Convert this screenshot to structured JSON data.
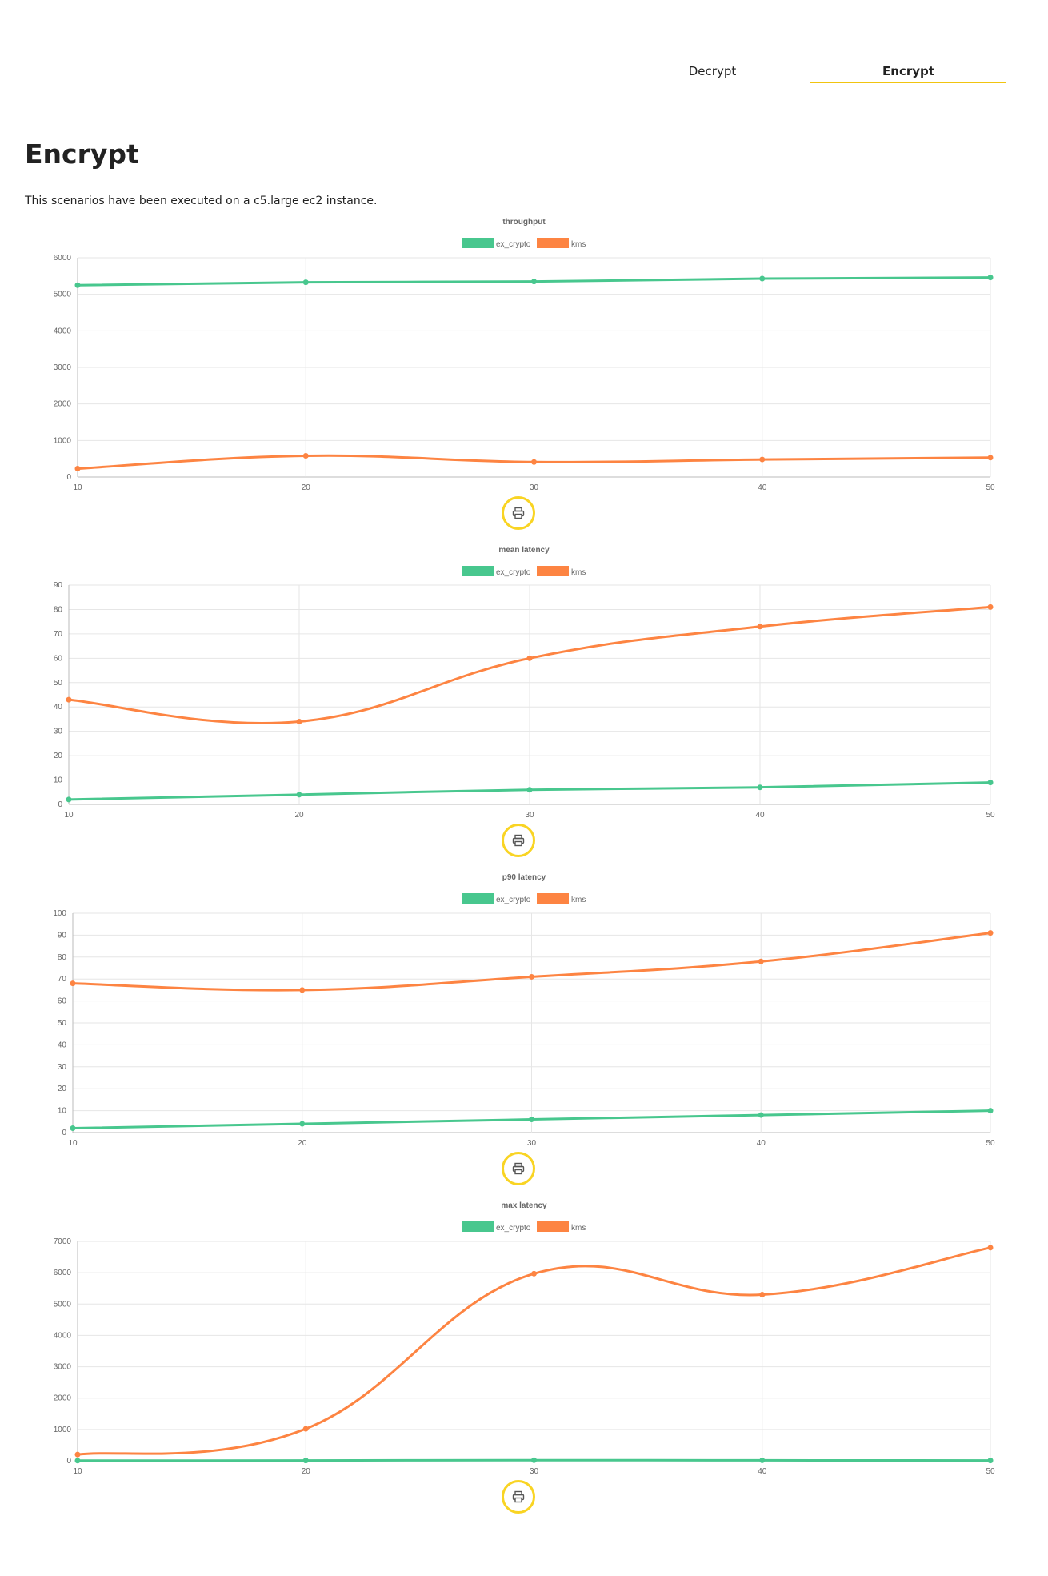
{
  "tabs": [
    {
      "label": "Decrypt",
      "active": false
    },
    {
      "label": "Encrypt",
      "active": true
    }
  ],
  "page": {
    "title": "Encrypt",
    "description": "This scenarios have been executed on a c5.large ec2 instance."
  },
  "colors": {
    "ex_crypto": "#48c78e",
    "kms": "#fd8442",
    "accent": "#f9d423"
  },
  "icons": {
    "print": "printer-icon"
  },
  "chart_data": [
    {
      "type": "line",
      "title": "throughput",
      "x": [
        10,
        20,
        30,
        40,
        50
      ],
      "ylim": [
        0,
        6000
      ],
      "yticks": [
        0,
        1000,
        2000,
        3000,
        4000,
        5000,
        6000
      ],
      "grid": true,
      "legend": "top-center",
      "series": [
        {
          "name": "ex_crypto",
          "color": "#48c78e",
          "values": [
            5250,
            5330,
            5350,
            5430,
            5460
          ]
        },
        {
          "name": "kms",
          "color": "#fd8442",
          "values": [
            230,
            580,
            410,
            480,
            530
          ]
        }
      ]
    },
    {
      "type": "line",
      "title": "mean latency",
      "x": [
        10,
        20,
        30,
        40,
        50
      ],
      "ylim": [
        0,
        90
      ],
      "yticks": [
        0,
        10,
        20,
        30,
        40,
        50,
        60,
        70,
        80,
        90
      ],
      "grid": true,
      "legend": "top-center",
      "series": [
        {
          "name": "ex_crypto",
          "color": "#48c78e",
          "values": [
            2,
            4,
            6,
            7,
            9
          ]
        },
        {
          "name": "kms",
          "color": "#fd8442",
          "values": [
            43,
            34,
            60,
            73,
            81
          ]
        }
      ]
    },
    {
      "type": "line",
      "title": "p90 latency",
      "x": [
        10,
        20,
        30,
        40,
        50
      ],
      "ylim": [
        0,
        100
      ],
      "yticks": [
        0,
        10,
        20,
        30,
        40,
        50,
        60,
        70,
        80,
        90,
        100
      ],
      "grid": true,
      "legend": "top-center",
      "series": [
        {
          "name": "ex_crypto",
          "color": "#48c78e",
          "values": [
            2,
            4,
            6,
            8,
            10
          ]
        },
        {
          "name": "kms",
          "color": "#fd8442",
          "values": [
            68,
            65,
            71,
            78,
            91
          ]
        }
      ]
    },
    {
      "type": "line",
      "title": "max latency",
      "x": [
        10,
        20,
        30,
        40,
        50
      ],
      "ylim": [
        0,
        7000
      ],
      "yticks": [
        0,
        1000,
        2000,
        3000,
        4000,
        5000,
        6000,
        7000
      ],
      "grid": true,
      "legend": "top-center",
      "series": [
        {
          "name": "ex_crypto",
          "color": "#48c78e",
          "values": [
            5,
            10,
            20,
            15,
            10
          ]
        },
        {
          "name": "kms",
          "color": "#fd8442",
          "values": [
            200,
            1020,
            5970,
            5300,
            6800
          ]
        }
      ]
    }
  ]
}
